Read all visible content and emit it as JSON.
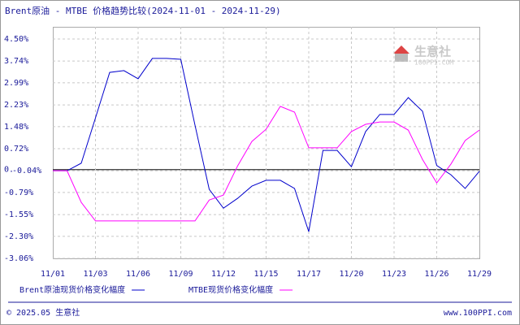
{
  "chart_data": {
    "type": "line",
    "title": "Brent原油 - MTBE 价格趋势比较(2024-11-01 - 2024-11-29)",
    "categories": [
      "11/01",
      null,
      null,
      "11/03",
      null,
      null,
      "11/06",
      null,
      null,
      "11/09",
      null,
      null,
      "11/12",
      null,
      null,
      "11/15",
      null,
      null,
      "11/17",
      null,
      null,
      "11/20",
      null,
      null,
      "11/23",
      null,
      null,
      "11/26",
      null,
      null,
      "11/29"
    ],
    "series": [
      {
        "name": "Brent原油现货价格变化幅度",
        "color": "#0000cc",
        "values": [
          -0.04,
          -0.04,
          0.22,
          1.78,
          3.35,
          3.41,
          3.13,
          3.83,
          3.83,
          3.8,
          1.53,
          -0.68,
          -1.33,
          -0.99,
          -0.57,
          -0.37,
          -0.37,
          -0.65,
          -2.14,
          0.66,
          0.66,
          0.1,
          1.31,
          1.9,
          1.9,
          2.48,
          2.01,
          0.14,
          -0.18,
          -0.65,
          -0.06
        ]
      },
      {
        "name": "MTBE现货价格变化幅度",
        "color": "#ff00ff",
        "values": [
          -0.04,
          -0.04,
          -1.13,
          -1.77,
          -1.77,
          -1.77,
          -1.77,
          -1.77,
          -1.77,
          -1.77,
          -1.77,
          -1.05,
          -0.88,
          0.13,
          0.97,
          1.39,
          2.18,
          1.98,
          0.75,
          0.75,
          0.75,
          1.31,
          1.56,
          1.64,
          1.64,
          1.36,
          0.35,
          -0.46,
          0.19,
          1.0,
          1.36
        ]
      }
    ],
    "ylim": [
      -3.06,
      4.5
    ],
    "yticks": [
      {
        "value": 4.5,
        "label": "4.50%"
      },
      {
        "value": 3.74,
        "label": "3.74%"
      },
      {
        "value": 2.99,
        "label": "2.99%"
      },
      {
        "value": 2.23,
        "label": "2.23%"
      },
      {
        "value": 1.48,
        "label": "1.48%"
      },
      {
        "value": 0.72,
        "label": "0.72%"
      },
      {
        "value": 0,
        "label": "0."
      },
      {
        "value": -0.04,
        "label": "-0.04%"
      },
      {
        "value": -0.79,
        "label": "-0.79%"
      },
      {
        "value": -1.55,
        "label": "-1.55%"
      },
      {
        "value": -2.3,
        "label": "-2.30%"
      },
      {
        "value": -3.06,
        "label": "-3.06%"
      }
    ],
    "grid": true,
    "watermark": {
      "name": "生意社",
      "url": "100PPI.COM"
    },
    "footer": {
      "left": "© 2025.05 生意社",
      "right": "www.100PPI.com"
    }
  }
}
